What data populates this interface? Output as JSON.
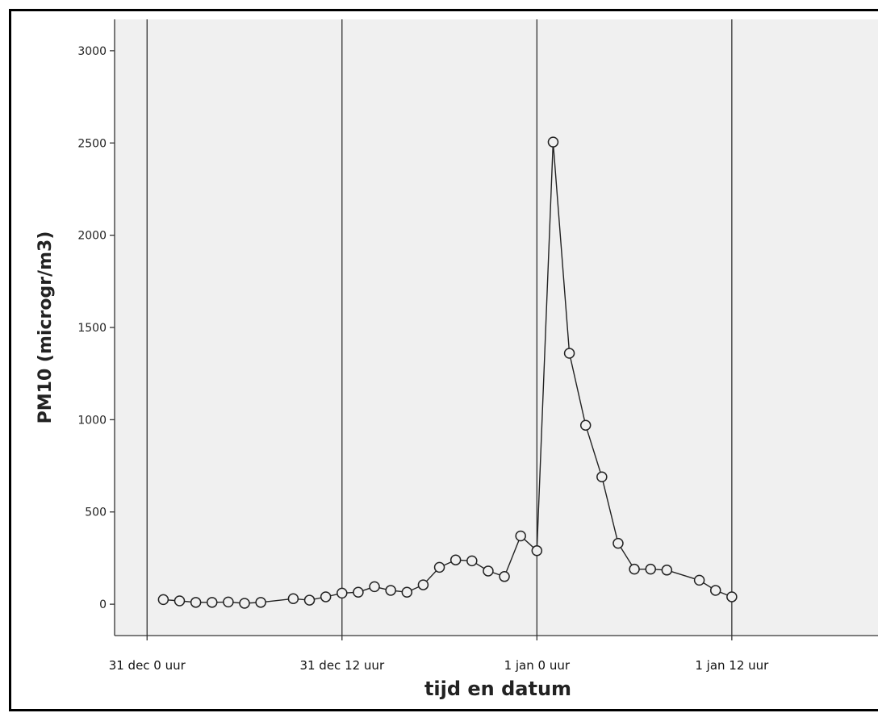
{
  "chart_data": {
    "type": "line",
    "title": "",
    "xlabel": "tijd en datum",
    "ylabel": "PM10 (microgr/m3)",
    "ylim": [
      -170,
      3170
    ],
    "xlim": [
      -2,
      45
    ],
    "grid": "vertical lines at x ticks",
    "x_unit": "hours since 31 dec 0 uur",
    "y_ticks": [
      0,
      500,
      1000,
      1500,
      2000,
      2500,
      3000
    ],
    "x_ticks": [
      {
        "value": 0,
        "label": "31 dec 0 uur"
      },
      {
        "value": 12,
        "label": "31 dec 12 uur"
      },
      {
        "value": 24,
        "label": "1 jan 0 uur"
      },
      {
        "value": 36,
        "label": "1 jan 12 uur"
      }
    ],
    "colors": {
      "plot_background": "#f0f0f0",
      "line": "#222222",
      "marker": "#222222"
    },
    "series": [
      {
        "marker": "open-circle",
        "x": [
          1,
          2,
          3,
          4,
          5,
          6,
          7,
          9,
          10,
          11,
          12,
          13,
          14,
          15,
          16,
          17,
          18,
          19,
          20,
          21,
          22,
          23,
          24,
          25,
          26,
          27,
          28,
          29,
          30,
          31,
          32,
          34,
          35,
          36
        ],
        "y": [
          25,
          18,
          10,
          10,
          12,
          5,
          10,
          30,
          22,
          40,
          60,
          65,
          95,
          75,
          65,
          105,
          200,
          240,
          235,
          180,
          150,
          370,
          290,
          2505,
          1360,
          970,
          690,
          330,
          190,
          190,
          185,
          130,
          75,
          40
        ]
      }
    ]
  }
}
